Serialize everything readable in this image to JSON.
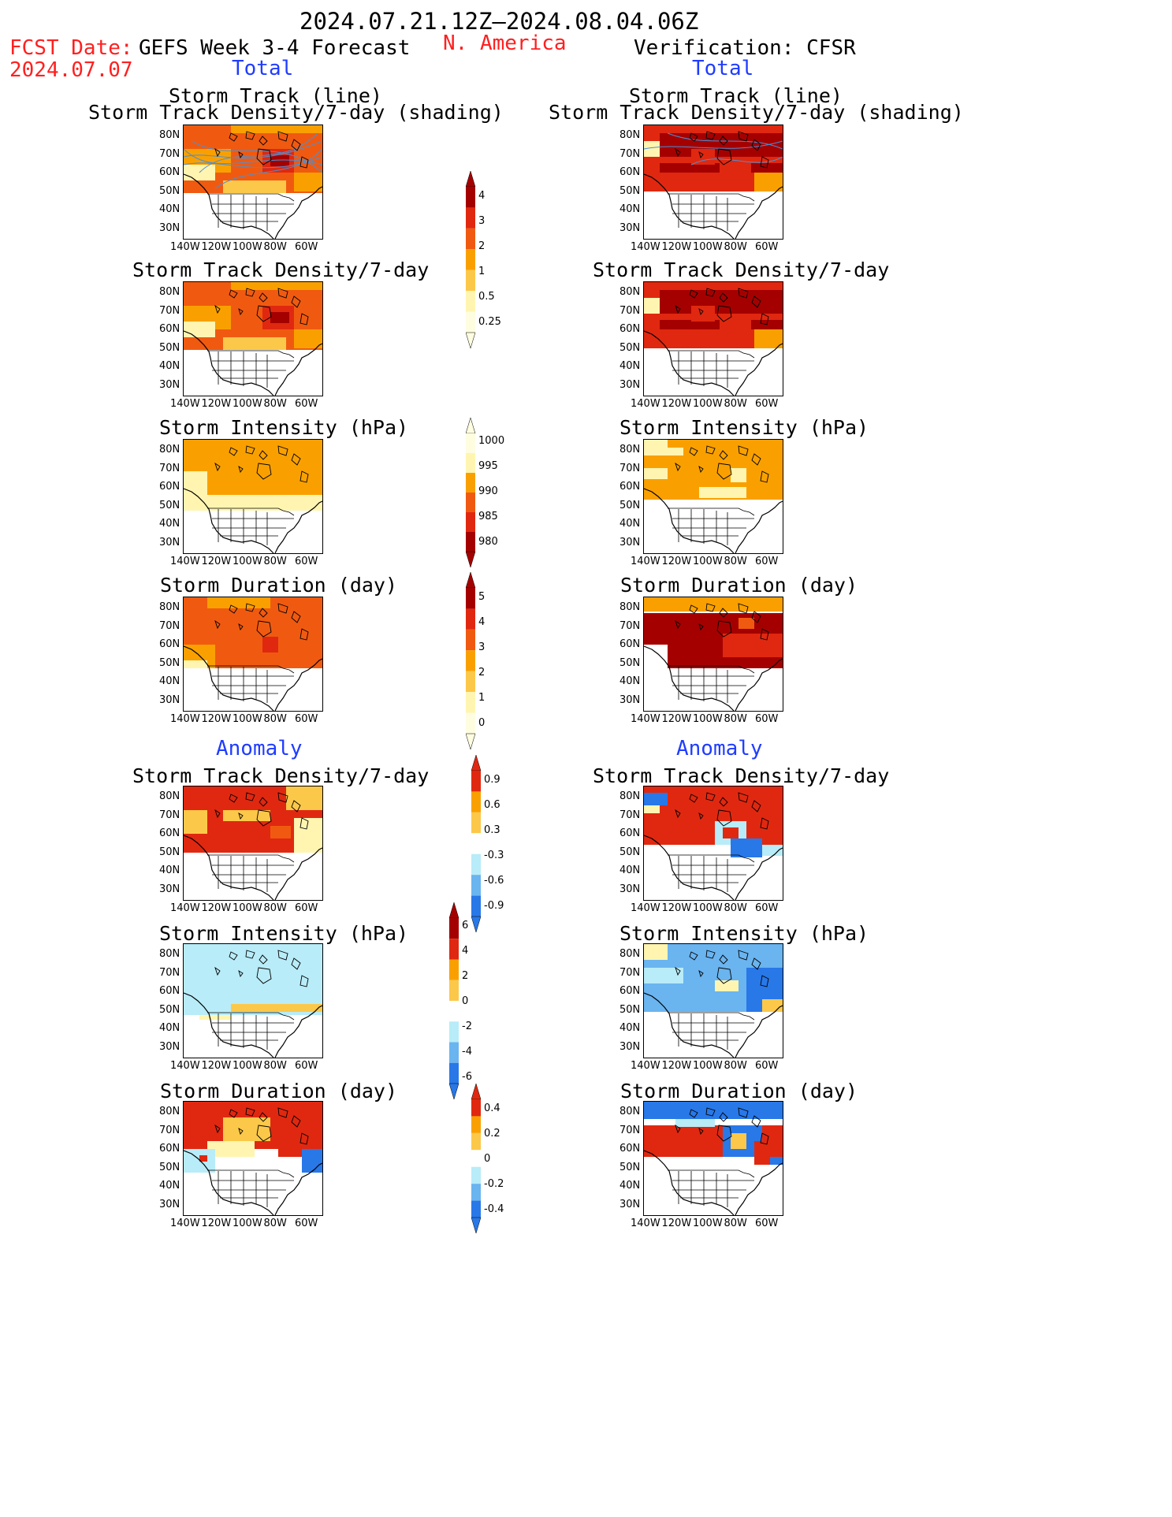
{
  "header": {
    "date_range": "2024.07.21.12Z—2024.08.04.06Z",
    "fcst_label": "FCST Date:",
    "fcst_date": "2024.07.07",
    "product": "GEFS Week 3-4 Forecast",
    "region": "N. America",
    "verification": "Verification: CFSR"
  },
  "sections": {
    "total_left": "Total",
    "total_right": "Total",
    "anomaly_left": "Anomaly",
    "anomaly_right": "Anomaly"
  },
  "axes": {
    "lat_labels": [
      "80N",
      "70N",
      "60N",
      "50N",
      "40N",
      "30N"
    ],
    "lon_labels": [
      "140W",
      "120W",
      "100W",
      "80W",
      "60W"
    ]
  },
  "panels": {
    "p1_title_a": "Storm Track (line)",
    "p1_title_b": "Storm Track Density/7-day (shading)",
    "p2_title": "Storm Track Density/7-day",
    "p3_title": "Storm Intensity (hPa)",
    "p4_title": "Storm Duration (day)",
    "p5_title": "Storm Track Density/7-day",
    "p6_title": "Storm Intensity (hPa)",
    "p7_title": "Storm Duration (day)"
  },
  "colorbars": {
    "density_total": [
      "4",
      "3",
      "2",
      "1",
      "0.5",
      "0.25"
    ],
    "intensity_total": [
      "1000",
      "995",
      "990",
      "985",
      "980"
    ],
    "duration_total": [
      "5",
      "4",
      "3",
      "2",
      "1",
      "0"
    ],
    "density_anom": [
      "0.9",
      "0.6",
      "0.3",
      "-0.3",
      "-0.6",
      "-0.9"
    ],
    "intensity_anom": [
      "6",
      "4",
      "2",
      "0",
      "-2",
      "-4",
      "-6"
    ],
    "duration_anom": [
      "0.4",
      "0.2",
      "0",
      "-0.2",
      "-0.4"
    ]
  },
  "colors": {
    "title_red": "#ff2020",
    "label_blue": "#1f3cff",
    "dark_red": "#a50000",
    "red": "#e02810",
    "orange_red": "#f05a10",
    "orange": "#f9a000",
    "light_orange": "#fcc84a",
    "pale_yellow": "#fff5b0",
    "light_blue": "#b8ecf8",
    "mid_blue": "#6ab4f0",
    "blue": "#2878e8",
    "track_blue": "#4a90d8"
  }
}
